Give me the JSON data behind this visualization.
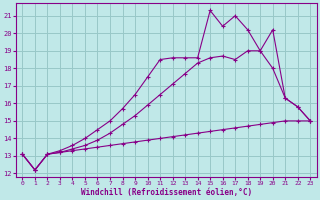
{
  "xlabel": "Windchill (Refroidissement éolien,°C)",
  "bg_color": "#c0e8e8",
  "grid_color": "#98c8c8",
  "line_color": "#880088",
  "xlim_min": -0.5,
  "xlim_max": 23.5,
  "ylim_min": 11.8,
  "ylim_max": 21.7,
  "xticks": [
    0,
    1,
    2,
    3,
    4,
    5,
    6,
    7,
    8,
    9,
    10,
    11,
    12,
    13,
    14,
    15,
    16,
    17,
    18,
    19,
    20,
    21,
    22,
    23
  ],
  "yticks": [
    12,
    13,
    14,
    15,
    16,
    17,
    18,
    19,
    20,
    21
  ],
  "line1_x": [
    0,
    1,
    2,
    3,
    4,
    5,
    6,
    7,
    8,
    9,
    10,
    11,
    12,
    13,
    14,
    15,
    16,
    17,
    18,
    19,
    20,
    21,
    22,
    23
  ],
  "line1_y": [
    13.1,
    12.2,
    13.1,
    13.2,
    13.3,
    13.4,
    13.5,
    13.6,
    13.7,
    13.8,
    13.9,
    14.0,
    14.1,
    14.2,
    14.3,
    14.4,
    14.5,
    14.6,
    14.7,
    14.8,
    14.9,
    15.0,
    15.0,
    15.0
  ],
  "line2_x": [
    0,
    1,
    2,
    3,
    4,
    5,
    6,
    7,
    8,
    9,
    10,
    11,
    12,
    13,
    14,
    15,
    16,
    17,
    18,
    19,
    20,
    21,
    22,
    23
  ],
  "line2_y": [
    13.1,
    12.2,
    13.1,
    13.2,
    13.4,
    13.6,
    13.9,
    14.3,
    14.8,
    15.3,
    15.9,
    16.5,
    17.1,
    17.7,
    18.3,
    18.6,
    18.7,
    18.5,
    19.0,
    19.0,
    18.0,
    16.3,
    15.8,
    15.0
  ],
  "line3_x": [
    0,
    1,
    2,
    3,
    4,
    5,
    6,
    7,
    8,
    9,
    10,
    11,
    12,
    13,
    14,
    15,
    16,
    17,
    18,
    19,
    20,
    21,
    22,
    23
  ],
  "line3_y": [
    13.1,
    12.2,
    13.1,
    13.3,
    13.6,
    14.0,
    14.5,
    15.0,
    15.7,
    16.5,
    17.5,
    18.5,
    18.6,
    18.6,
    18.6,
    21.3,
    20.4,
    21.0,
    20.2,
    19.0,
    20.2,
    16.3,
    15.8,
    15.0
  ]
}
